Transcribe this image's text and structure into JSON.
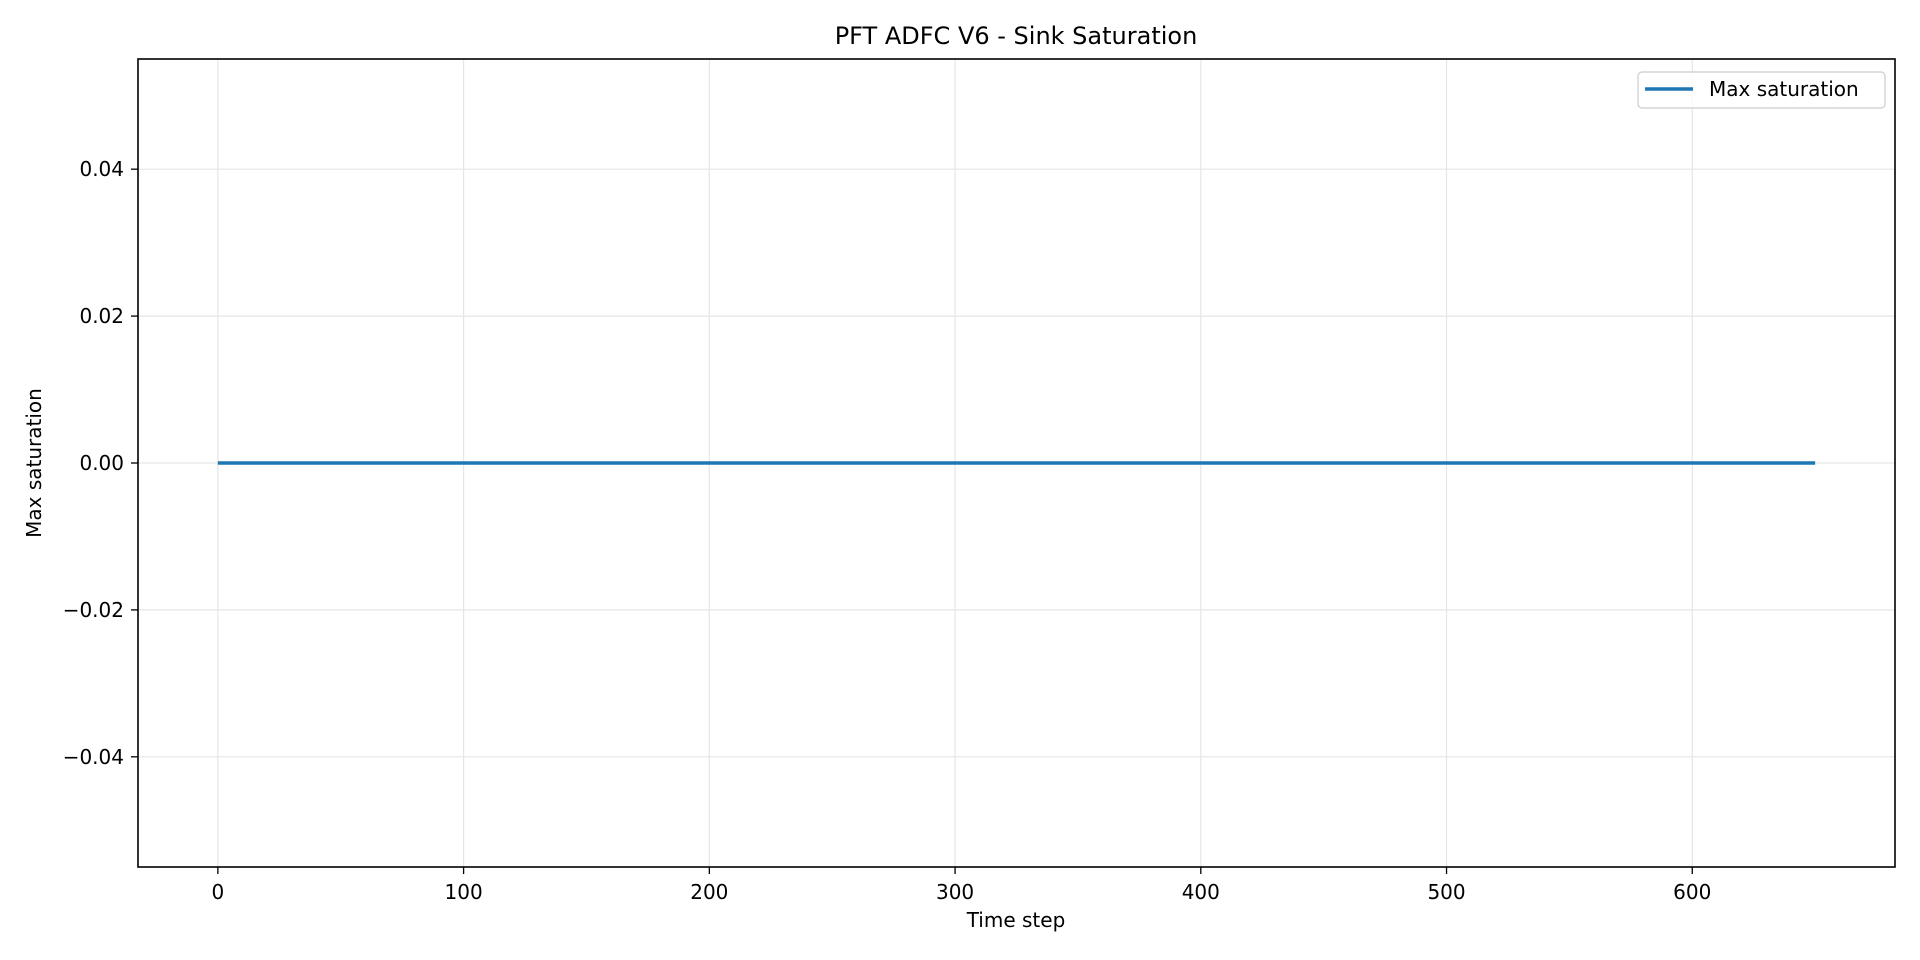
{
  "chart_data": {
    "type": "line",
    "title": "PFT ADFC V6 - Sink Saturation",
    "xlabel": "Time step",
    "ylabel": "Max saturation",
    "xlim": [
      -32.5,
      682.5
    ],
    "ylim": [
      -0.055,
      0.055
    ],
    "xticks": [
      0,
      100,
      200,
      300,
      400,
      500,
      600
    ],
    "xtick_labels": [
      "0",
      "100",
      "200",
      "300",
      "400",
      "500",
      "600"
    ],
    "yticks": [
      -0.04,
      -0.02,
      0.0,
      0.02,
      0.04
    ],
    "ytick_labels": [
      "−0.04",
      "−0.02",
      "0.00",
      "0.02",
      "0.04"
    ],
    "grid": true,
    "legend_position": "top-right",
    "series": [
      {
        "name": "Max saturation",
        "color": "#1f77b4",
        "x": [
          0,
          650
        ],
        "y": [
          0.0,
          0.0
        ]
      }
    ]
  }
}
